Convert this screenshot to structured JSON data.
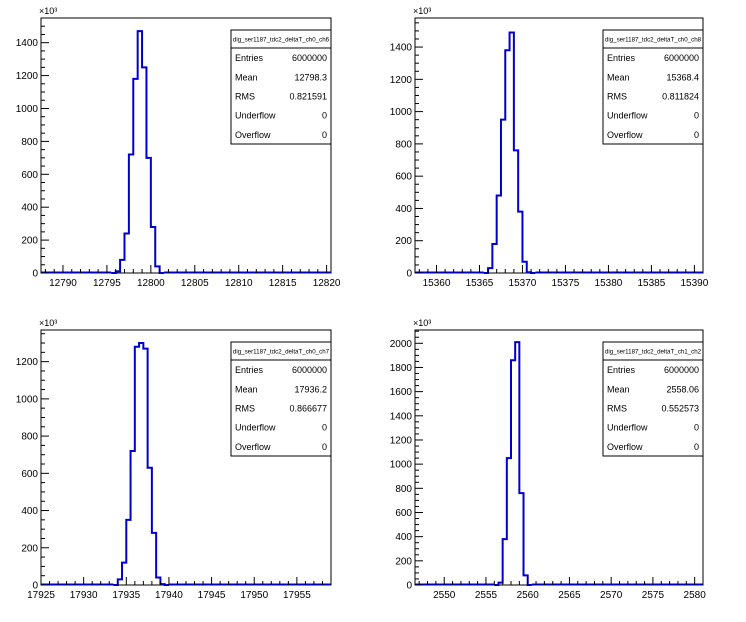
{
  "chart_data": [
    {
      "type": "histogram",
      "stats_title": "dig_ser1187_tdc2_deltaT_ch0_ch6",
      "stats": [
        {
          "label": "Entries",
          "value": "6000000"
        },
        {
          "label": "Mean",
          "value": "12798.3"
        },
        {
          "label": "RMS",
          "value": "0.821591"
        },
        {
          "label": "Underflow",
          "value": "0"
        },
        {
          "label": "Overflow",
          "value": "0"
        }
      ],
      "exponent_label": "×10³",
      "xlim": [
        12787.5,
        12820.5
      ],
      "ylim": [
        0,
        1550
      ],
      "xticks": [
        12790,
        12795,
        12800,
        12805,
        12810,
        12815,
        12820
      ],
      "yticks": [
        0,
        200,
        400,
        600,
        800,
        1000,
        1200,
        1400
      ],
      "bin_width": 0.5,
      "bins": [
        {
          "x": 12795.5,
          "y": 0
        },
        {
          "x": 12796.0,
          "y": 10
        },
        {
          "x": 12796.5,
          "y": 80
        },
        {
          "x": 12797.0,
          "y": 240
        },
        {
          "x": 12797.5,
          "y": 720
        },
        {
          "x": 12798.0,
          "y": 1180
        },
        {
          "x": 12798.5,
          "y": 1470
        },
        {
          "x": 12799.0,
          "y": 1250
        },
        {
          "x": 12799.5,
          "y": 700
        },
        {
          "x": 12800.0,
          "y": 280
        },
        {
          "x": 12800.5,
          "y": 40
        },
        {
          "x": 12801.0,
          "y": 0
        }
      ]
    },
    {
      "type": "histogram",
      "stats_title": "dig_ser1187_tdc2_deltaT_ch0_ch8",
      "stats": [
        {
          "label": "Entries",
          "value": "6000000"
        },
        {
          "label": "Mean",
          "value": "15368.4"
        },
        {
          "label": "RMS",
          "value": "0.811824"
        },
        {
          "label": "Underflow",
          "value": "0"
        },
        {
          "label": "Overflow",
          "value": "0"
        }
      ],
      "exponent_label": "×10³",
      "xlim": [
        15357.5,
        15391
      ],
      "ylim": [
        0,
        1580
      ],
      "xticks": [
        15360,
        15365,
        15370,
        15375,
        15380,
        15385,
        15390
      ],
      "yticks": [
        0,
        200,
        400,
        600,
        800,
        1000,
        1200,
        1400
      ],
      "bin_width": 0.5,
      "bins": [
        {
          "x": 15365.5,
          "y": 0
        },
        {
          "x": 15366.0,
          "y": 30
        },
        {
          "x": 15366.5,
          "y": 180
        },
        {
          "x": 15367.0,
          "y": 480
        },
        {
          "x": 15367.5,
          "y": 950
        },
        {
          "x": 15368.0,
          "y": 1380
        },
        {
          "x": 15368.5,
          "y": 1490
        },
        {
          "x": 15369.0,
          "y": 760
        },
        {
          "x": 15369.5,
          "y": 380
        },
        {
          "x": 15370.0,
          "y": 70
        },
        {
          "x": 15370.5,
          "y": 5
        },
        {
          "x": 15371.0,
          "y": 0
        }
      ]
    },
    {
      "type": "histogram",
      "stats_title": "dig_ser1187_tdc2_deltaT_ch0_ch7",
      "stats": [
        {
          "label": "Entries",
          "value": "6000000"
        },
        {
          "label": "Mean",
          "value": "17936.2"
        },
        {
          "label": "RMS",
          "value": "0.866677"
        },
        {
          "label": "Underflow",
          "value": "0"
        },
        {
          "label": "Overflow",
          "value": "0"
        }
      ],
      "exponent_label": "×10³",
      "xlim": [
        17925,
        17959
      ],
      "ylim": [
        0,
        1370
      ],
      "xticks": [
        17925,
        17930,
        17935,
        17940,
        17945,
        17950,
        17955
      ],
      "yticks": [
        0,
        200,
        400,
        600,
        800,
        1000,
        1200
      ],
      "bin_width": 0.5,
      "bins": [
        {
          "x": 17933.5,
          "y": 0
        },
        {
          "x": 17934.0,
          "y": 30
        },
        {
          "x": 17934.5,
          "y": 120
        },
        {
          "x": 17935.0,
          "y": 350
        },
        {
          "x": 17935.5,
          "y": 720
        },
        {
          "x": 17936.0,
          "y": 1280
        },
        {
          "x": 17936.5,
          "y": 1300
        },
        {
          "x": 17937.0,
          "y": 1270
        },
        {
          "x": 17937.5,
          "y": 630
        },
        {
          "x": 17938.0,
          "y": 280
        },
        {
          "x": 17938.5,
          "y": 40
        },
        {
          "x": 17939.0,
          "y": 5
        },
        {
          "x": 17939.5,
          "y": 0
        }
      ]
    },
    {
      "type": "histogram",
      "stats_title": "dig_ser1187_tdc2_deltaT_ch1_ch2",
      "stats": [
        {
          "label": "Entries",
          "value": "6000000"
        },
        {
          "label": "Mean",
          "value": "2558.06"
        },
        {
          "label": "RMS",
          "value": "0.552573"
        },
        {
          "label": "Underflow",
          "value": "0"
        },
        {
          "label": "Overflow",
          "value": "0"
        }
      ],
      "exponent_label": "×10³",
      "xlim": [
        2546.5,
        2581
      ],
      "ylim": [
        0,
        2110
      ],
      "xticks": [
        2550,
        2555,
        2560,
        2565,
        2570,
        2575,
        2580
      ],
      "yticks": [
        0,
        200,
        400,
        600,
        800,
        1000,
        1200,
        1400,
        1600,
        1800,
        2000
      ],
      "bin_width": 0.5,
      "bins": [
        {
          "x": 2556.0,
          "y": 0
        },
        {
          "x": 2556.5,
          "y": 20
        },
        {
          "x": 2557.0,
          "y": 380
        },
        {
          "x": 2557.5,
          "y": 1050
        },
        {
          "x": 2558.0,
          "y": 1860
        },
        {
          "x": 2558.5,
          "y": 2010
        },
        {
          "x": 2559.0,
          "y": 760
        },
        {
          "x": 2559.5,
          "y": 80
        },
        {
          "x": 2560.0,
          "y": 0
        }
      ]
    }
  ]
}
